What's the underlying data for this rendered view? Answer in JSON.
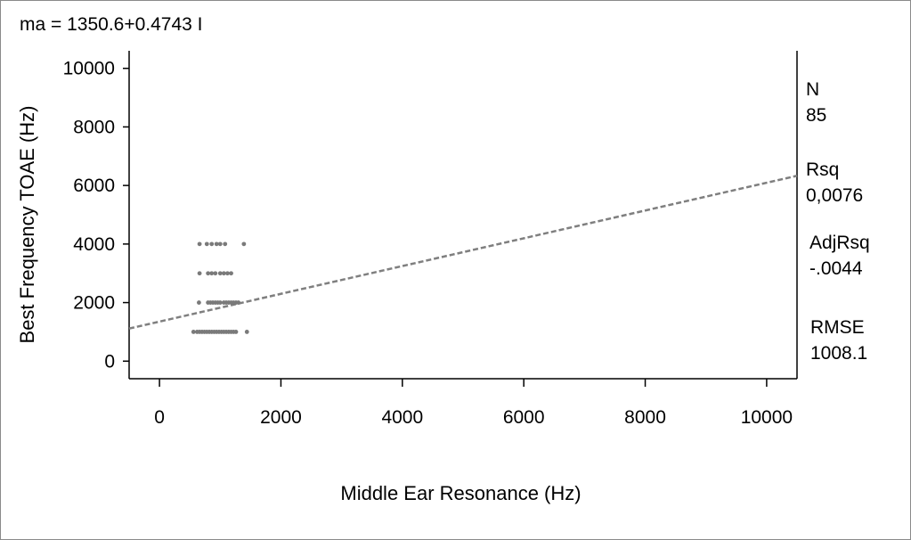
{
  "chart_data": {
    "type": "scatter",
    "title": "ma = 1350.6+0.4743 I",
    "xlabel": "Middle Ear Resonance (Hz)",
    "ylabel": "Best Frequency TOAE (Hz)",
    "xlim": [
      -500,
      10500
    ],
    "ylim": [
      -600,
      10600
    ],
    "xticks": [
      0,
      2000,
      4000,
      6000,
      8000,
      10000
    ],
    "yticks": [
      0,
      2000,
      4000,
      6000,
      8000,
      10000
    ],
    "regression": {
      "intercept": 1350.6,
      "slope": 0.4743,
      "style": "dashed",
      "x_range": [
        -500,
        10500
      ]
    },
    "series": [
      {
        "points": [
          {
            "x": 560,
            "y": 1000
          },
          {
            "x": 620,
            "y": 1000
          },
          {
            "x": 660,
            "y": 1000
          },
          {
            "x": 700,
            "y": 1000
          },
          {
            "x": 740,
            "y": 1000
          },
          {
            "x": 780,
            "y": 1000
          },
          {
            "x": 820,
            "y": 1000
          },
          {
            "x": 860,
            "y": 1000
          },
          {
            "x": 900,
            "y": 1000
          },
          {
            "x": 940,
            "y": 1000
          },
          {
            "x": 980,
            "y": 1000
          },
          {
            "x": 1020,
            "y": 1000
          },
          {
            "x": 1060,
            "y": 1000
          },
          {
            "x": 1100,
            "y": 1000
          },
          {
            "x": 1140,
            "y": 1000
          },
          {
            "x": 1180,
            "y": 1000
          },
          {
            "x": 1220,
            "y": 1000
          },
          {
            "x": 1260,
            "y": 1000
          },
          {
            "x": 1440,
            "y": 1000
          },
          {
            "x": 650,
            "y": 2000
          },
          {
            "x": 800,
            "y": 2000
          },
          {
            "x": 840,
            "y": 2000
          },
          {
            "x": 880,
            "y": 2000
          },
          {
            "x": 920,
            "y": 2000
          },
          {
            "x": 960,
            "y": 2000
          },
          {
            "x": 1000,
            "y": 2000
          },
          {
            "x": 1060,
            "y": 2000
          },
          {
            "x": 1100,
            "y": 2000
          },
          {
            "x": 1140,
            "y": 2000
          },
          {
            "x": 1180,
            "y": 2000
          },
          {
            "x": 1220,
            "y": 2000
          },
          {
            "x": 1260,
            "y": 2000
          },
          {
            "x": 1300,
            "y": 2000
          },
          {
            "x": 660,
            "y": 3000
          },
          {
            "x": 800,
            "y": 3000
          },
          {
            "x": 860,
            "y": 3000
          },
          {
            "x": 920,
            "y": 3000
          },
          {
            "x": 1000,
            "y": 3000
          },
          {
            "x": 1060,
            "y": 3000
          },
          {
            "x": 1120,
            "y": 3000
          },
          {
            "x": 1180,
            "y": 3000
          },
          {
            "x": 660,
            "y": 4000
          },
          {
            "x": 780,
            "y": 4000
          },
          {
            "x": 860,
            "y": 4000
          },
          {
            "x": 940,
            "y": 4000
          },
          {
            "x": 1000,
            "y": 4000
          },
          {
            "x": 1080,
            "y": 4000
          },
          {
            "x": 1390,
            "y": 4000
          }
        ]
      }
    ],
    "stats": [
      {
        "label": "N",
        "value": "85"
      },
      {
        "label": "Rsq",
        "value": "0,0076"
      },
      {
        "label": "AdjRsq",
        "value": "-.0044"
      },
      {
        "label": "RMSE",
        "value": "1008.1"
      }
    ],
    "grid": false,
    "colors": {
      "points": "#7a7a7a",
      "line": "#7f7f7f",
      "axis": "#000000"
    }
  }
}
